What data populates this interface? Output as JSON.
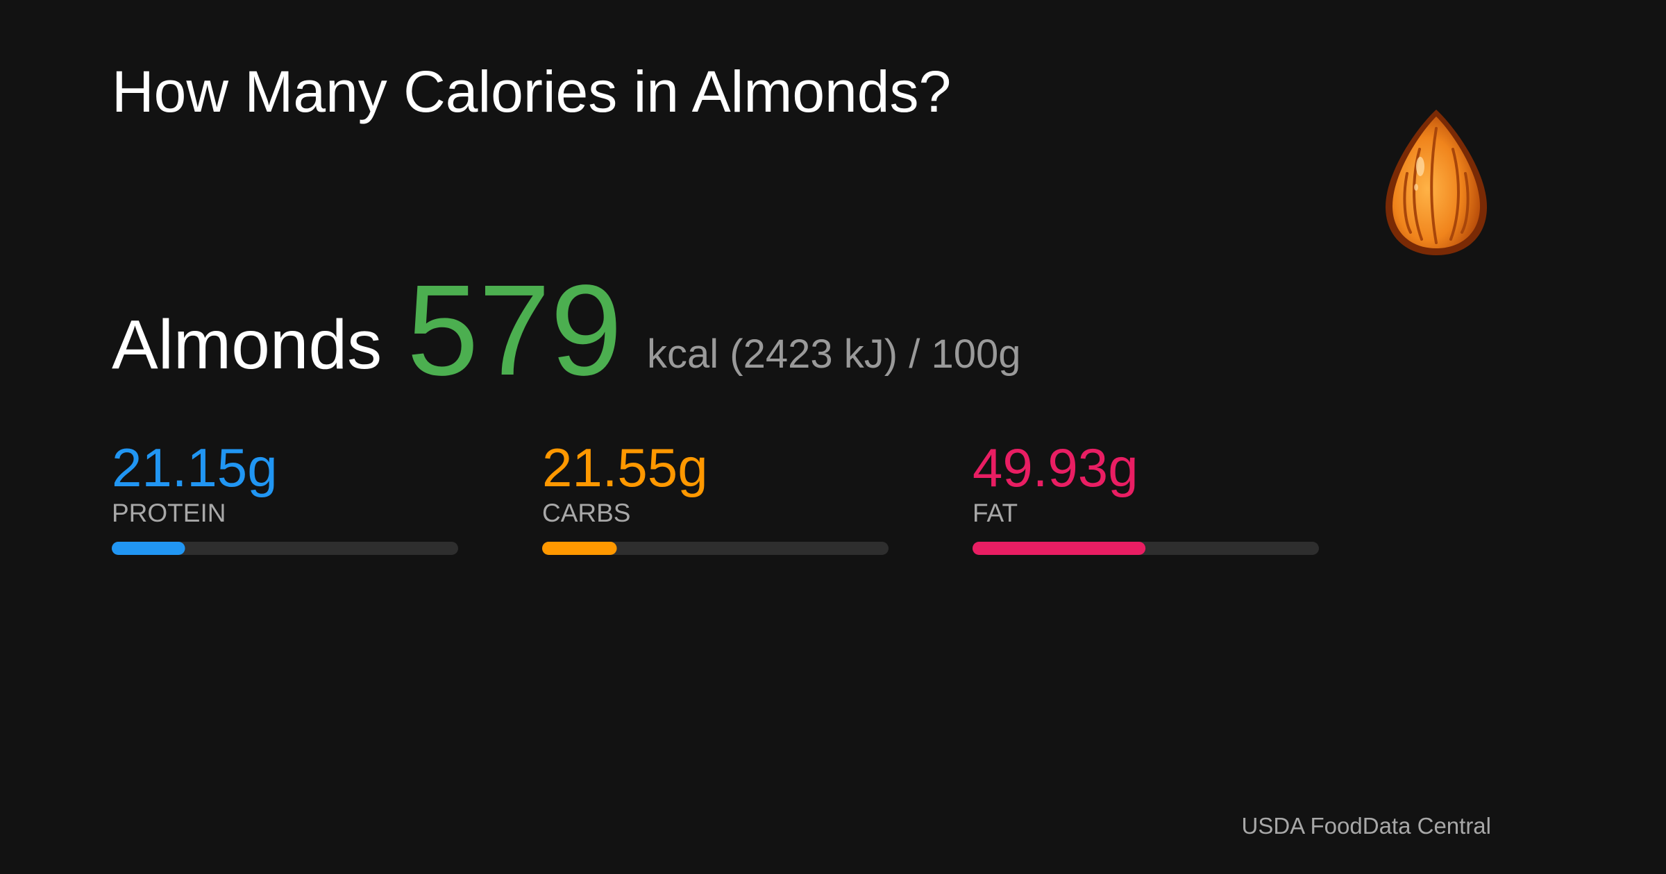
{
  "title": "How Many Calories in Almonds?",
  "food": "Almonds",
  "calories": 579,
  "energy_unit": "kcal",
  "kilojoules": "(2423 kJ)",
  "per": "/",
  "serving": {
    "value": 100,
    "label": "100g"
  },
  "macros": [
    {
      "name": "PROTEIN",
      "grams": {
        "value": 21.15,
        "label": "21.15g"
      },
      "color": "#2196f3"
    },
    {
      "name": "CARBS",
      "grams": {
        "value": 21.55,
        "label": "21.55g"
      },
      "color": "#ff9800"
    },
    {
      "name": "FAT",
      "grams": {
        "value": 49.93,
        "label": "49.93g"
      },
      "color": "#e91e63"
    }
  ],
  "calorie_color": "#4caf50",
  "source": "USDA FoodData Central"
}
